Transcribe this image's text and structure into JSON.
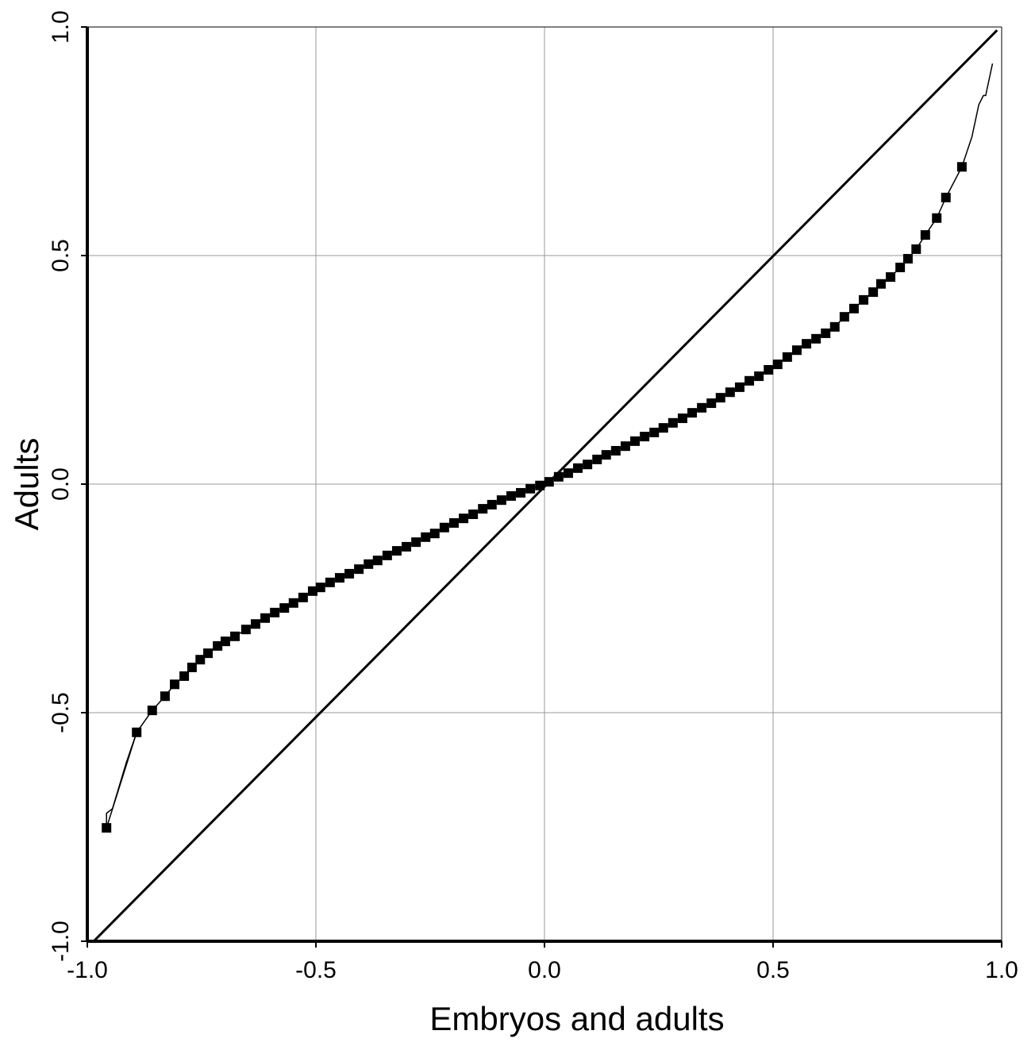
{
  "chart_data": {
    "type": "scatter",
    "x_label": "Embryos and adults",
    "y_label": "Adults",
    "xlim": [
      -1.0,
      1.0
    ],
    "ylim": [
      -1.0,
      1.0
    ],
    "xticks": [
      {
        "value": -1.0,
        "label": "-1.0"
      },
      {
        "value": -0.5,
        "label": "-0.5"
      },
      {
        "value": 0.0,
        "label": "0.0"
      },
      {
        "value": 0.5,
        "label": "0.5"
      },
      {
        "value": 1.0,
        "label": "1.0"
      }
    ],
    "yticks": [
      {
        "value": -1.0,
        "label": "-1.0"
      },
      {
        "value": -0.5,
        "label": "-0.5"
      },
      {
        "value": 0.0,
        "label": "0.0"
      },
      {
        "value": 0.5,
        "label": "0.5"
      },
      {
        "value": 1.0,
        "label": "1.0"
      }
    ],
    "grid": true,
    "reference_line": {
      "x": [
        -0.986,
        0.99
      ],
      "y": [
        -1.0,
        0.993
      ],
      "color": "#000000"
    },
    "series": [
      {
        "color": "#000000",
        "marker": "square",
        "x": [
          -0.958,
          -0.892,
          -0.858,
          -0.83,
          -0.809,
          -0.788,
          -0.771,
          -0.753,
          -0.736,
          -0.715,
          -0.698,
          -0.677,
          -0.653,
          -0.632,
          -0.611,
          -0.59,
          -0.569,
          -0.549,
          -0.528,
          -0.507,
          -0.49,
          -0.469,
          -0.448,
          -0.427,
          -0.406,
          -0.385,
          -0.365,
          -0.344,
          -0.323,
          -0.302,
          -0.281,
          -0.26,
          -0.24,
          -0.219,
          -0.198,
          -0.177,
          -0.156,
          -0.135,
          -0.115,
          -0.094,
          -0.073,
          -0.052,
          -0.031,
          -0.01,
          0.01,
          0.031,
          0.052,
          0.073,
          0.094,
          0.115,
          0.135,
          0.156,
          0.177,
          0.198,
          0.219,
          0.24,
          0.26,
          0.281,
          0.302,
          0.323,
          0.344,
          0.365,
          0.385,
          0.406,
          0.427,
          0.448,
          0.469,
          0.49,
          0.51,
          0.531,
          0.552,
          0.573,
          0.594,
          0.615,
          0.635,
          0.656,
          0.677,
          0.698,
          0.719,
          0.736,
          0.757,
          0.778,
          0.795,
          0.813,
          0.833,
          0.858,
          0.878,
          0.913
        ],
        "y": [
          -0.752,
          -0.543,
          -0.495,
          -0.464,
          -0.438,
          -0.42,
          -0.401,
          -0.384,
          -0.37,
          -0.354,
          -0.344,
          -0.333,
          -0.318,
          -0.306,
          -0.293,
          -0.281,
          -0.271,
          -0.26,
          -0.248,
          -0.234,
          -0.226,
          -0.215,
          -0.205,
          -0.196,
          -0.186,
          -0.175,
          -0.167,
          -0.156,
          -0.146,
          -0.137,
          -0.127,
          -0.116,
          -0.108,
          -0.095,
          -0.085,
          -0.075,
          -0.066,
          -0.054,
          -0.045,
          -0.035,
          -0.026,
          -0.019,
          -0.01,
          -0.003,
          0.005,
          0.016,
          0.024,
          0.035,
          0.043,
          0.054,
          0.064,
          0.073,
          0.083,
          0.094,
          0.104,
          0.113,
          0.123,
          0.134,
          0.144,
          0.156,
          0.167,
          0.177,
          0.189,
          0.201,
          0.212,
          0.226,
          0.236,
          0.25,
          0.262,
          0.278,
          0.293,
          0.307,
          0.318,
          0.33,
          0.344,
          0.366,
          0.384,
          0.403,
          0.42,
          0.438,
          0.453,
          0.474,
          0.493,
          0.514,
          0.545,
          0.582,
          0.627,
          0.694
        ]
      },
      {
        "color": "#000000",
        "marker": "none",
        "x": [
          -0.958,
          -0.958,
          -0.945,
          -0.93,
          -0.915,
          -0.892
        ],
        "y": [
          -0.752,
          -0.72,
          -0.71,
          -0.66,
          -0.61,
          -0.543
        ]
      },
      {
        "color": "#000000",
        "marker": "none",
        "x": [
          0.913,
          0.935,
          0.95,
          0.96,
          0.965,
          0.98
        ],
        "y": [
          0.694,
          0.76,
          0.83,
          0.85,
          0.85,
          0.92
        ]
      }
    ]
  }
}
